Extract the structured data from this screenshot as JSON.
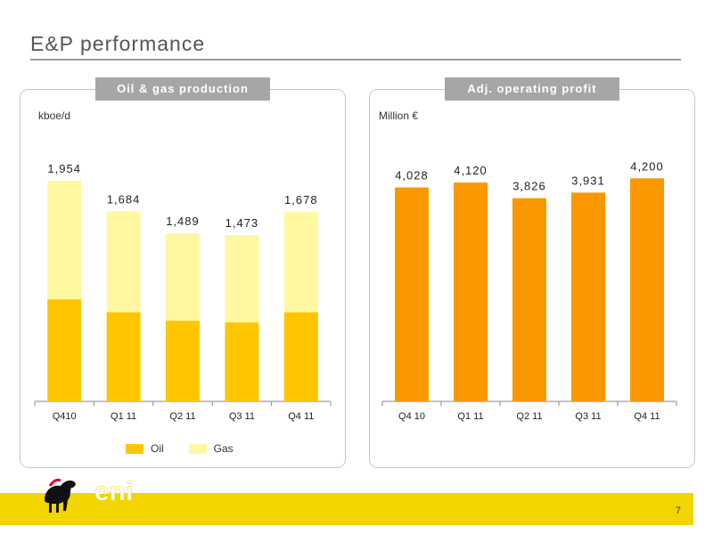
{
  "page": {
    "title": "E&P performance",
    "page_number": "7"
  },
  "colors": {
    "oil": "#ffc600",
    "gas": "#fff8a0",
    "profit": "#fb9800",
    "band": "#f2d600",
    "tab": "#a6a6a6"
  },
  "logo": {
    "text": "eni",
    "icon": "six-legged-dog-icon"
  },
  "chart_data": [
    {
      "type": "bar",
      "stacked": true,
      "title": "Oil & gas production",
      "ylabel": "kboe/d",
      "categories": [
        "Q410",
        "Q1 11",
        "Q2 11",
        "Q3 11",
        "Q4 11"
      ],
      "totals": [
        "1,954",
        "1,684",
        "1,489",
        "1,473",
        "1,678"
      ],
      "series": [
        {
          "name": "Oil",
          "values": [
            905,
            790,
            715,
            700,
            790
          ]
        },
        {
          "name": "Gas",
          "values": [
            1049,
            894,
            774,
            773,
            888
          ]
        }
      ],
      "ylim": [
        0,
        2050
      ],
      "legend": [
        "Oil",
        "Gas"
      ],
      "legend_position": "bottom"
    },
    {
      "type": "bar",
      "title": "Adj. operating profit",
      "ylabel": "Million €",
      "categories": [
        "Q4 10",
        "Q1 11",
        "Q2 11",
        "Q3 11",
        "Q4 11"
      ],
      "values": [
        4028,
        4120,
        3826,
        3931,
        4200
      ],
      "labels": [
        "4,028",
        "4,120",
        "3,826",
        "3,931",
        "4,200"
      ],
      "ylim": [
        0,
        4390
      ]
    }
  ]
}
